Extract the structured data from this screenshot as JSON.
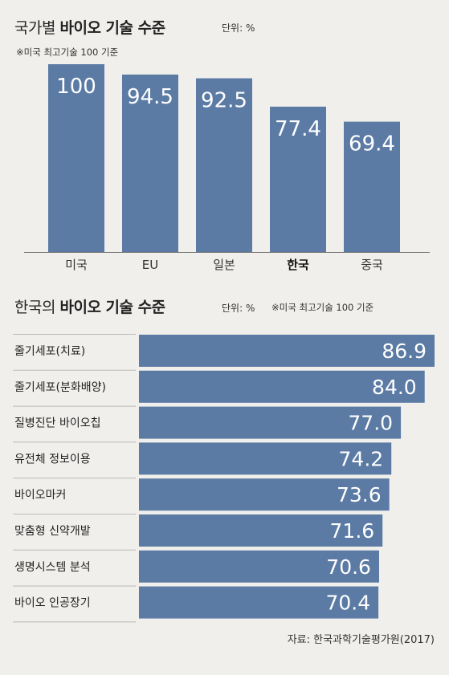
{
  "chart1": {
    "title_light": "국가별",
    "title_bold": "바이오 기술 수준",
    "unit": "단위: %",
    "note": "※미국 최고기술 100 기준"
  },
  "chart2": {
    "title_light": "한국의",
    "title_bold": "바이오 기술 수준",
    "unit": "단위: %",
    "note": "※미국 최고기술 100 기준"
  },
  "source": "자료: 한국과학기술평가원(2017)",
  "colors": {
    "bar": "#5b7ba5",
    "bar_text": "#ffffff",
    "axis": "#777777",
    "divider": "#b9b9b9",
    "highlight_label": "#111111"
  },
  "chart_data": [
    {
      "type": "bar",
      "orientation": "vertical",
      "title": "국가별 바이오 기술 수준",
      "categories": [
        "미국",
        "EU",
        "일본",
        "한국",
        "중국"
      ],
      "values": [
        100,
        94.5,
        92.5,
        77.4,
        69.4
      ],
      "value_labels": [
        "100",
        "94.5",
        "92.5",
        "77.4",
        "69.4"
      ],
      "highlight": "한국",
      "ylim": [
        0,
        100
      ],
      "grid": false
    },
    {
      "type": "bar",
      "orientation": "horizontal",
      "title": "한국의 바이오 기술 수준",
      "categories": [
        "줄기세포(치료)",
        "줄기세포(분화배양)",
        "질병진단 바이오칩",
        "유전체 정보이용",
        "바이오마커",
        "맞춤형 신약개발",
        "생명시스템 분석",
        "바이오 인공장기"
      ],
      "values": [
        86.9,
        84.0,
        77.0,
        74.2,
        73.6,
        71.6,
        70.6,
        70.4
      ],
      "value_labels": [
        "86.9",
        "84.0",
        "77.0",
        "74.2",
        "73.6",
        "71.6",
        "70.6",
        "70.4"
      ],
      "grid": false
    }
  ]
}
